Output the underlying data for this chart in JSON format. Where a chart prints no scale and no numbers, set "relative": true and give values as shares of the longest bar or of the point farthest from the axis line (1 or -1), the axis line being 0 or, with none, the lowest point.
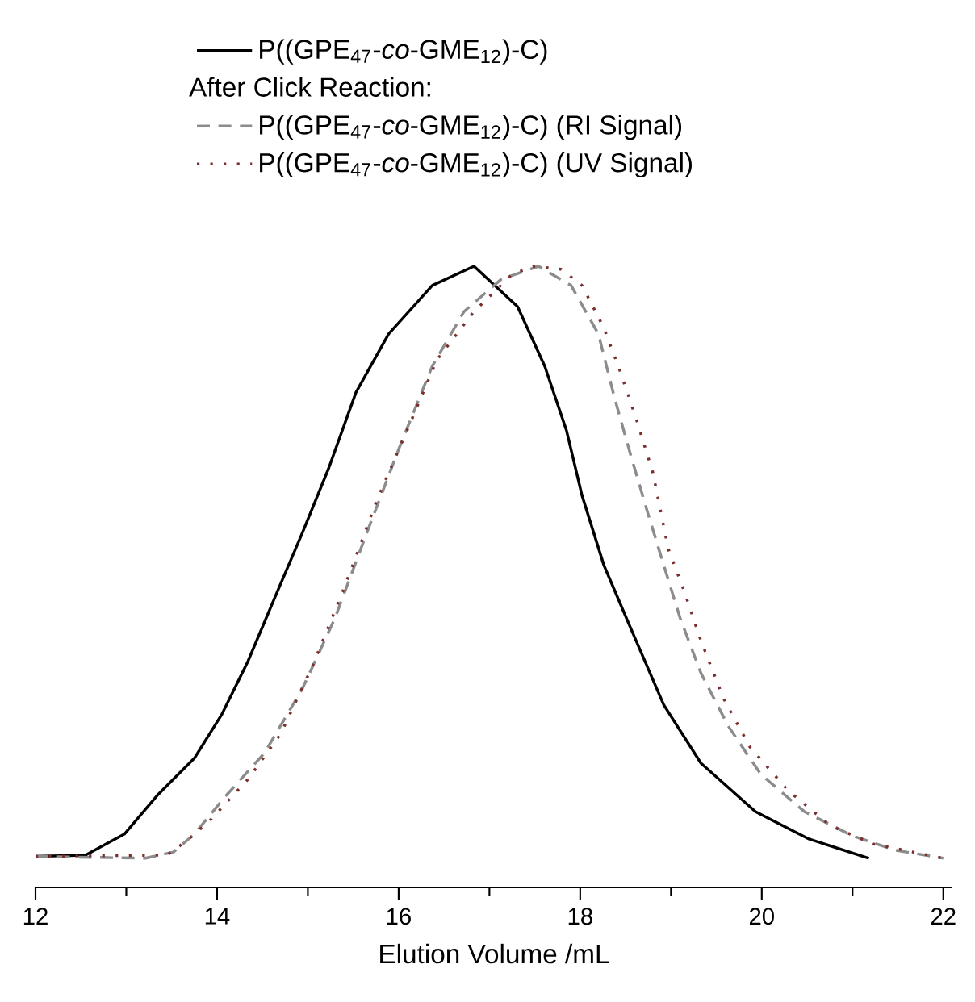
{
  "chart_data": {
    "type": "line",
    "relative": true,
    "xlabel": "Elution Volume /mL",
    "legend": "top",
    "legend_title": "After Click Reaction:",
    "xlim": [
      12,
      22.1
    ],
    "xticks": [
      12,
      14,
      16,
      18,
      20,
      22
    ],
    "series": [
      {
        "name": "P((GPE$_{47}$-*co*-GME$_{12}$)-C)",
        "color": "#000000",
        "line_style": "solid",
        "x": [
          12.0,
          12.55,
          12.98,
          13.34,
          13.75,
          14.05,
          14.34,
          14.64,
          14.94,
          15.23,
          15.53,
          15.89,
          16.37,
          16.83,
          17.31,
          17.61,
          17.85,
          18.02,
          18.26,
          18.56,
          18.92,
          19.33,
          19.93,
          20.52,
          21.18
        ],
        "values": [
          0.05,
          0.052,
          0.086,
          0.148,
          0.208,
          0.278,
          0.364,
          0.468,
          0.571,
          0.675,
          0.797,
          0.891,
          0.969,
          1.0,
          0.935,
          0.839,
          0.735,
          0.631,
          0.519,
          0.416,
          0.294,
          0.2,
          0.122,
          0.078,
          0.047
        ]
      },
      {
        "name": "P((GPE$_{47}$-*co*-GME$_{12}$)-C) (RI Signal)",
        "color": "#8c8c8c",
        "line_style": "dashed",
        "x": [
          12.0,
          13.21,
          13.52,
          13.75,
          14.1,
          14.52,
          14.94,
          15.3,
          15.65,
          16.01,
          16.37,
          16.72,
          17.13,
          17.54,
          17.9,
          18.2,
          18.38,
          18.56,
          18.74,
          18.92,
          19.1,
          19.33,
          19.63,
          19.99,
          20.47,
          21.0,
          21.47,
          22.0
        ],
        "values": [
          0.05,
          0.047,
          0.057,
          0.086,
          0.148,
          0.216,
          0.32,
          0.434,
          0.571,
          0.709,
          0.839,
          0.927,
          0.979,
          1.0,
          0.969,
          0.891,
          0.787,
          0.694,
          0.605,
          0.519,
          0.434,
          0.345,
          0.26,
          0.182,
          0.122,
          0.083,
          0.06,
          0.047
        ]
      },
      {
        "name": "P((GPE$_{47}$-*co*-GME$_{12}$)-C) (UV Signal)",
        "color": "#7a2e2e",
        "line_style": "dotted",
        "x": [
          12.0,
          13.45,
          13.69,
          13.93,
          14.34,
          14.7,
          15.05,
          15.41,
          15.76,
          16.12,
          16.42,
          16.83,
          17.25,
          17.49,
          17.79,
          18.02,
          18.26,
          18.44,
          18.62,
          18.8,
          18.97,
          19.15,
          19.33,
          19.58,
          19.87,
          20.29,
          20.76,
          21.23,
          22.0
        ],
        "values": [
          0.05,
          0.052,
          0.078,
          0.109,
          0.174,
          0.247,
          0.356,
          0.486,
          0.623,
          0.745,
          0.849,
          0.927,
          0.987,
          1.0,
          0.995,
          0.969,
          0.901,
          0.831,
          0.753,
          0.668,
          0.545,
          0.475,
          0.397,
          0.304,
          0.226,
          0.156,
          0.099,
          0.07,
          0.047
        ]
      }
    ]
  }
}
